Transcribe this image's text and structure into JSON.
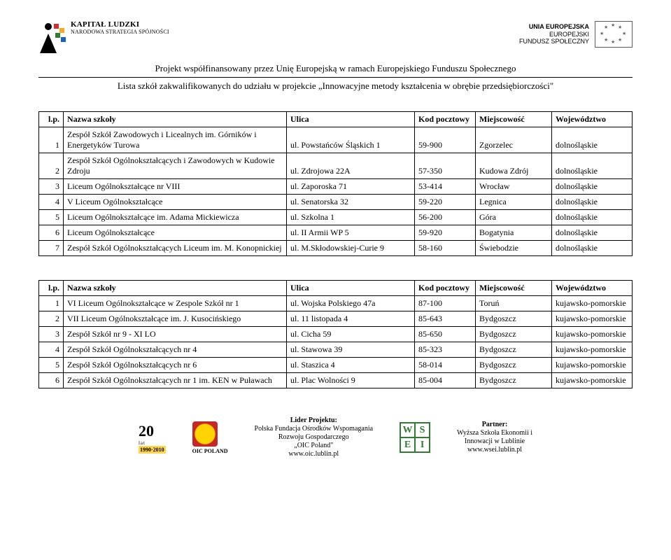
{
  "header": {
    "kl_line1": "KAPITAŁ LUDZKI",
    "kl_line2": "NARODOWA STRATEGIA SPÓJNOŚCI",
    "ue_line1": "UNIA EUROPEJSKA",
    "ue_line2": "EUROPEJSKI",
    "ue_line3": "FUNDUSZ SPOŁECZNY",
    "project_line": "Projekt współfinansowany przez Unię Europejską w ramach Europejskiego Funduszu Społecznego",
    "subtitle": "Lista szkół zakwalifikowanych do udziału w projekcie „Innowacyjne metody kształcenia w obrębie przedsiębiorczości\""
  },
  "columns": {
    "lp": "l.p.",
    "nazwa": "Nazwa szkoły",
    "ulica": "Ulica",
    "kod": "Kod pocztowy",
    "miejsc": "Miejscowość",
    "woj": "Województwo"
  },
  "table1": [
    {
      "lp": "1",
      "nazwa": "Zespół Szkół Zawodowych i Licealnych im. Górników i Energetyków Turowa",
      "ulica": "ul. Powstańców Śląskich 1",
      "kod": "59-900",
      "miejsc": "Zgorzelec",
      "woj": "dolnośląskie"
    },
    {
      "lp": "2",
      "nazwa": "Zespół Szkół Ogólnokształcących i Zawodowych w Kudowie Zdroju",
      "ulica": "ul. Zdrojowa 22A",
      "kod": "57-350",
      "miejsc": "Kudowa Zdrój",
      "woj": "dolnośląskie"
    },
    {
      "lp": "3",
      "nazwa": "Liceum Ogólnokształcące nr VIII",
      "ulica": "ul. Zaporoska 71",
      "kod": "53-414",
      "miejsc": "Wrocław",
      "woj": "dolnośląskie"
    },
    {
      "lp": "4",
      "nazwa": "V Liceum Ogólnokształcące",
      "ulica": "ul. Senatorska 32",
      "kod": "59-220",
      "miejsc": "Legnica",
      "woj": "dolnośląskie"
    },
    {
      "lp": "5",
      "nazwa": "Liceum Ogólnokształcące im. Adama Mickiewicza",
      "ulica": "ul. Szkolna 1",
      "kod": "56-200",
      "miejsc": "Góra",
      "woj": "dolnośląskie"
    },
    {
      "lp": "6",
      "nazwa": "Liceum Ogólnokształcące",
      "ulica": "ul. II Armii WP 5",
      "kod": "59-920",
      "miejsc": "Bogatynia",
      "woj": "dolnośląskie"
    },
    {
      "lp": "7",
      "nazwa": "Zespół Szkół Ogólnokształcących Liceum im. M. Konopnickiej",
      "ulica": "ul. M.Skłodowskiej-Curie 9",
      "kod": "58-160",
      "miejsc": "Świebodzie",
      "woj": "dolnośląskie"
    }
  ],
  "table2": [
    {
      "lp": "1",
      "nazwa": "VI Liceum Ogólnokształcące w Zespole Szkół nr 1",
      "ulica": "ul. Wojska Polskiego 47a",
      "kod": "87-100",
      "miejsc": "Toruń",
      "woj": "kujawsko-pomorskie"
    },
    {
      "lp": "2",
      "nazwa": "VII Liceum Ogólnokształcące im. J. Kusocińskiego",
      "ulica": "ul. 11 listopada 4",
      "kod": "85-643",
      "miejsc": "Bydgoszcz",
      "woj": "kujawsko-pomorskie"
    },
    {
      "lp": "3",
      "nazwa": "Zespół Szkół nr 9 - XI LO",
      "ulica": "ul. Cicha 59",
      "kod": "85-650",
      "miejsc": "Bydgoszcz",
      "woj": "kujawsko-pomorskie"
    },
    {
      "lp": "4",
      "nazwa": "Zespół Szkół Ogólnokształcących nr 4",
      "ulica": "ul. Stawowa 39",
      "kod": "85-323",
      "miejsc": "Bydgoszcz",
      "woj": "kujawsko-pomorskie"
    },
    {
      "lp": "5",
      "nazwa": "Zespół Szkół Ogólnokształcących nr 6",
      "ulica": "ul. Staszica 4",
      "kod": "58-014",
      "miejsc": "Bydgoszcz",
      "woj": "kujawsko-pomorskie"
    },
    {
      "lp": "6",
      "nazwa": "Zespół Szkół Ogólnokształcących nr 1 im. KEN w Puławach",
      "ulica": "ul. Plac Wolności 9",
      "kod": "85-004",
      "miejsc": "Bydgoszcz",
      "woj": "kujawsko-pomorskie"
    }
  ],
  "footer": {
    "twenty_big": "20",
    "twenty_lat": "lat",
    "twenty_years": "1990·2010",
    "oic_label": "OIC POLAND",
    "lider_title": "Lider Projektu:",
    "lider_l1": "Polska Fundacja Ośrodków Wspomagania",
    "lider_l2": "Rozwoju Gospodarczego",
    "lider_l3": "„OIC Poland\"",
    "lider_l4": "www.oic.lublin.pl",
    "wsei_W": "W",
    "wsei_S": "S",
    "wsei_E": "E",
    "wsei_I": "I",
    "partner_title": "Partner:",
    "partner_l1": "Wyższa Szkoła Ekonomii i",
    "partner_l2": "Innowacji w Lublinie",
    "partner_l3": "www.wsei.lublin.pl"
  }
}
